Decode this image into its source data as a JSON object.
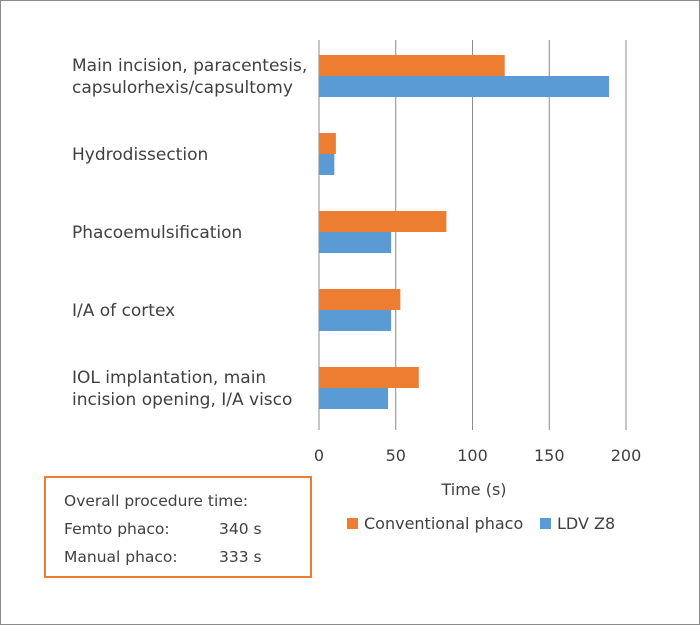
{
  "colors": {
    "conventional": "#ed7d31",
    "ldv": "#5b9bd5",
    "gridline": "#8c8c8c",
    "frame": "#8c8c8c",
    "box_border": "#ed7d31",
    "text": "#404040"
  },
  "chart_data": {
    "type": "bar",
    "orientation": "horizontal",
    "categories": [
      [
        "Main incision, paracentesis,",
        "capsulorhexis/capsultomy"
      ],
      [
        "Hydrodissection"
      ],
      [
        "Phacoemulsification"
      ],
      [
        "I/A of cortex"
      ],
      [
        "IOL implantation, main",
        "incision opening, I/A visco"
      ]
    ],
    "series": [
      {
        "name": "Conventional phaco",
        "color": "#ed7d31",
        "values": [
          121,
          11,
          83,
          53,
          65
        ]
      },
      {
        "name": "LDV Z8",
        "color": "#5b9bd5",
        "values": [
          189,
          10,
          47,
          47,
          45
        ]
      }
    ],
    "xlabel": "Time (s)",
    "ylabel": "",
    "xlim": [
      0,
      200
    ],
    "xticks": [
      0,
      50,
      100,
      150,
      200
    ],
    "grid": true,
    "legend_position": "bottom"
  },
  "summary": {
    "title": "Overall procedure time:",
    "rows": [
      {
        "label": "Femto phaco:",
        "value": "340 s"
      },
      {
        "label": "Manual phaco:",
        "value": "333 s"
      }
    ]
  }
}
